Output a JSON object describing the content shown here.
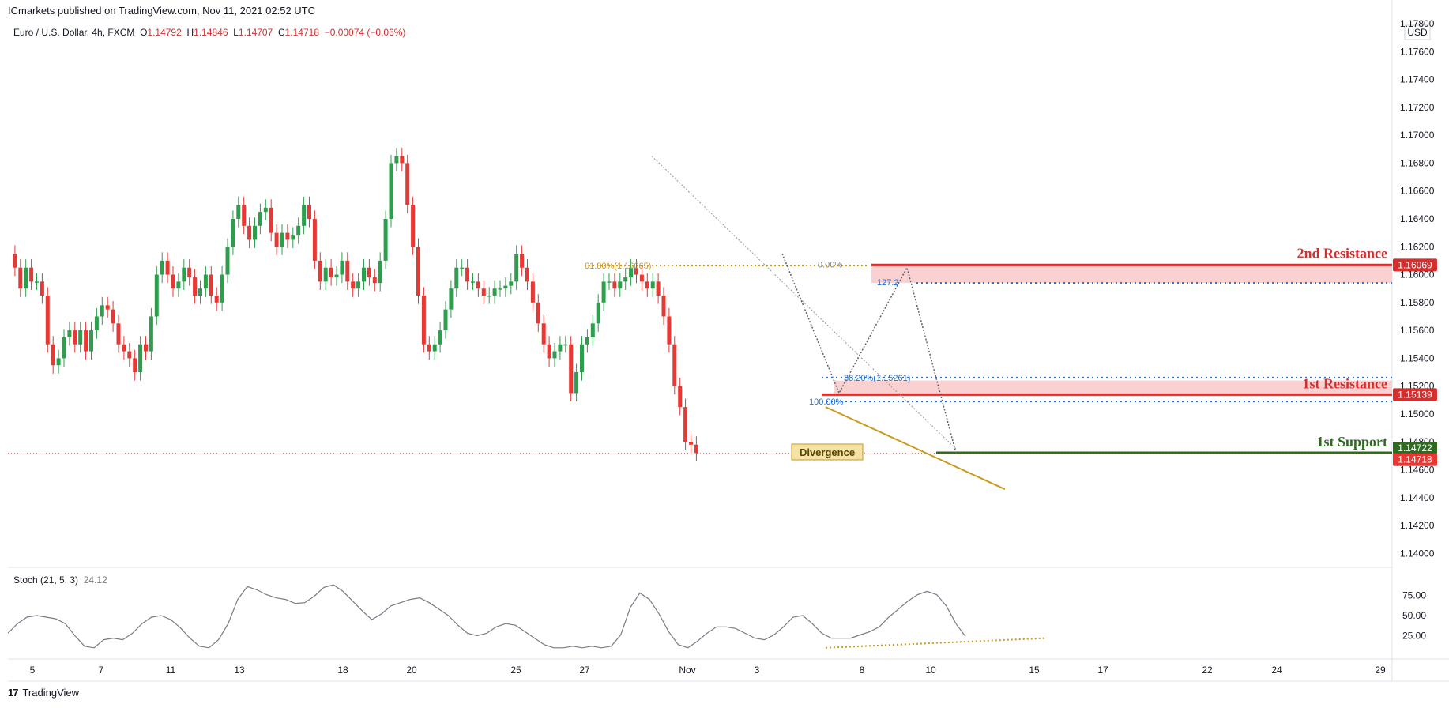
{
  "header": {
    "publisher_line": "ICmarkets published on TradingView.com, Nov 11, 2021 02:52 UTC"
  },
  "legend": {
    "symbol": "Euro / U.S. Dollar, 4h, FXCM",
    "open_label": "O",
    "open": "1.14792",
    "high_label": "H",
    "high": "1.14846",
    "low_label": "L",
    "low": "1.14707",
    "close_label": "C",
    "close": "1.14718",
    "change": "−0.00074 (−0.06%)"
  },
  "stoch_legend": {
    "name": "Stoch (21, 5, 3)",
    "value": "24.12"
  },
  "footer": {
    "brand": "TradingView",
    "logo_glyph": "17"
  },
  "colors": {
    "up": "#26a69a",
    "up_body": "#2e9e4e",
    "down": "#e53935",
    "resistance": "#d32f2f",
    "resistance_zone": "#f7c5c5",
    "support": "#2e6b1f",
    "divergence": "#c99a1f",
    "fib_blue": "#1e6fd9"
  },
  "chart_data": [
    {
      "type": "candlestick",
      "symbol": "EURUSD",
      "timeframe": "4h",
      "ylim": [
        1.139,
        1.178
      ],
      "y_ticks": [
        "1.17800",
        "1.17600",
        "1.17400",
        "1.17200",
        "1.17000",
        "1.16800",
        "1.16600",
        "1.16400",
        "1.16200",
        "1.16000",
        "1.15800",
        "1.15600",
        "1.15400",
        "1.15200",
        "1.15000",
        "1.14800",
        "1.14600",
        "1.14400",
        "1.14200",
        "1.14000"
      ],
      "currency_label": "USD",
      "x_ticks": [
        "5",
        "7",
        "11",
        "13",
        "18",
        "20",
        "25",
        "27",
        "Nov",
        "3",
        "8",
        "10",
        "15",
        "17",
        "22",
        "24",
        "29"
      ],
      "price_path": [
        1.1615,
        1.1605,
        1.159,
        1.1605,
        1.1595,
        1.1595,
        1.1585,
        1.155,
        1.1535,
        1.154,
        1.1555,
        1.156,
        1.155,
        1.156,
        1.1545,
        1.156,
        1.157,
        1.1578,
        1.1575,
        1.1565,
        1.155,
        1.1545,
        1.154,
        1.153,
        1.155,
        1.1545,
        1.157,
        1.16,
        1.161,
        1.16,
        1.159,
        1.1595,
        1.1605,
        1.1598,
        1.1585,
        1.159,
        1.16,
        1.1585,
        1.158,
        1.16,
        1.162,
        1.164,
        1.165,
        1.1635,
        1.1625,
        1.1635,
        1.1645,
        1.1648,
        1.163,
        1.162,
        1.163,
        1.1625,
        1.1628,
        1.1635,
        1.165,
        1.164,
        1.161,
        1.1595,
        1.1605,
        1.1598,
        1.16,
        1.161,
        1.1595,
        1.159,
        1.1595,
        1.1605,
        1.1598,
        1.1594,
        1.161,
        1.164,
        1.168,
        1.1685,
        1.168,
        1.165,
        1.162,
        1.1585,
        1.155,
        1.1545,
        1.155,
        1.156,
        1.1575,
        1.159,
        1.1605,
        1.1605,
        1.1595,
        1.1595,
        1.159,
        1.1585,
        1.1585,
        1.159,
        1.159,
        1.1592,
        1.1595,
        1.1615,
        1.1605,
        1.1595,
        1.158,
        1.1565,
        1.155,
        1.154,
        1.1545,
        1.155,
        1.155,
        1.1515,
        1.153,
        1.155,
        1.1555,
        1.1565,
        1.158,
        1.1595,
        1.1595,
        1.159,
        1.1595,
        1.1598,
        1.1605,
        1.16,
        1.1595,
        1.159,
        1.1595,
        1.1585,
        1.157,
        1.155,
        1.152,
        1.1505,
        1.148,
        1.1478,
        1.1472
      ],
      "annotations": {
        "second_resistance": {
          "label": "2nd Resistance",
          "price": 1.16069,
          "price_label": "1.16069"
        },
        "first_resistance": {
          "label": "1st Resistance",
          "price": 1.15139,
          "price_label": "1.15139"
        },
        "first_support": {
          "label": "1st Support",
          "price": 1.14722,
          "price_label": "1.14722"
        },
        "last_price": {
          "price": 1.14718,
          "price_label": "1.14718"
        },
        "divergence_label": "Divergence",
        "fib_618": "61.80%(1.16065)",
        "fib_0": "0.00%",
        "fib_127": "127.2",
        "fib_382": "38.20%(1.15261)",
        "fib_100": "100.00%"
      }
    },
    {
      "type": "line",
      "name": "Stoch (21, 5, 3)",
      "ylim": [
        0,
        100
      ],
      "y_ticks": [
        "75.00",
        "50.00",
        "25.00"
      ],
      "values": [
        28,
        40,
        48,
        50,
        48,
        46,
        40,
        25,
        12,
        10,
        20,
        22,
        20,
        28,
        40,
        48,
        50,
        45,
        35,
        22,
        12,
        10,
        20,
        40,
        70,
        86,
        82,
        76,
        72,
        70,
        65,
        66,
        74,
        85,
        88,
        80,
        68,
        56,
        45,
        52,
        62,
        66,
        70,
        72,
        66,
        58,
        50,
        38,
        28,
        25,
        28,
        36,
        40,
        38,
        30,
        22,
        14,
        10,
        10,
        12,
        10,
        12,
        10,
        12,
        26,
        60,
        78,
        70,
        52,
        30,
        14,
        10,
        18,
        28,
        36,
        36,
        34,
        28,
        22,
        20,
        26,
        36,
        48,
        50,
        40,
        28,
        22,
        22,
        22,
        26,
        30,
        36,
        48,
        58,
        68,
        76,
        80,
        76,
        62,
        40,
        24
      ]
    }
  ]
}
